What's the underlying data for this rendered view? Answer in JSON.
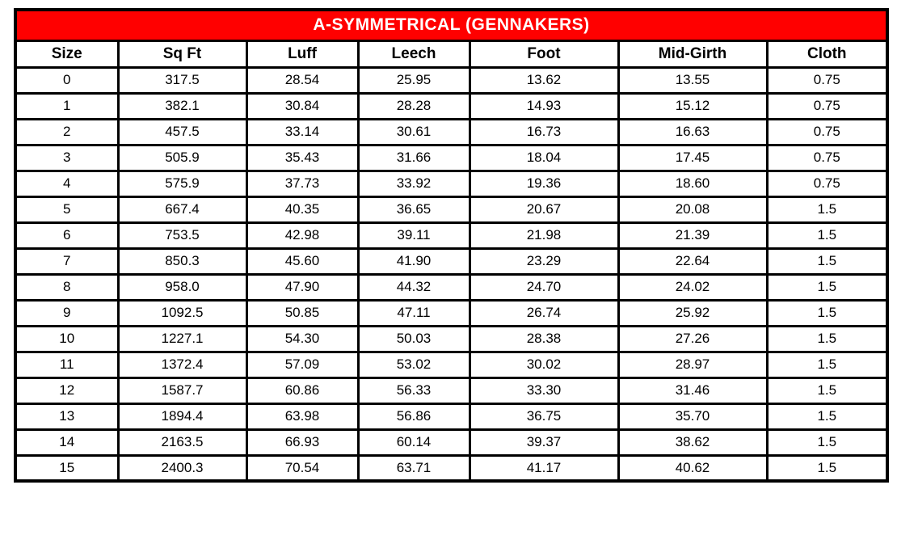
{
  "colors": {
    "title_bg": "#ff0000",
    "title_text": "#ffffff",
    "border": "#000000",
    "cell_bg": "#ffffff",
    "cell_text": "#000000"
  },
  "table": {
    "title": "A-SYMMETRICAL (GENNAKERS)",
    "columns": [
      "Size",
      "Sq Ft",
      "Luff",
      "Leech",
      "Foot",
      "Mid-Girth",
      "Cloth"
    ],
    "column_keys": [
      "size",
      "sq_ft",
      "luff",
      "leech",
      "foot",
      "mid_girth",
      "cloth"
    ],
    "rows": [
      [
        "0",
        "317.5",
        "28.54",
        "25.95",
        "13.62",
        "13.55",
        "0.75"
      ],
      [
        "1",
        "382.1",
        "30.84",
        "28.28",
        "14.93",
        "15.12",
        "0.75"
      ],
      [
        "2",
        "457.5",
        "33.14",
        "30.61",
        "16.73",
        "16.63",
        "0.75"
      ],
      [
        "3",
        "505.9",
        "35.43",
        "31.66",
        "18.04",
        "17.45",
        "0.75"
      ],
      [
        "4",
        "575.9",
        "37.73",
        "33.92",
        "19.36",
        "18.60",
        "0.75"
      ],
      [
        "5",
        "667.4",
        "40.35",
        "36.65",
        "20.67",
        "20.08",
        "1.5"
      ],
      [
        "6",
        "753.5",
        "42.98",
        "39.11",
        "21.98",
        "21.39",
        "1.5"
      ],
      [
        "7",
        "850.3",
        "45.60",
        "41.90",
        "23.29",
        "22.64",
        "1.5"
      ],
      [
        "8",
        "958.0",
        "47.90",
        "44.32",
        "24.70",
        "24.02",
        "1.5"
      ],
      [
        "9",
        "1092.5",
        "50.85",
        "47.11",
        "26.74",
        "25.92",
        "1.5"
      ],
      [
        "10",
        "1227.1",
        "54.30",
        "50.03",
        "28.38",
        "27.26",
        "1.5"
      ],
      [
        "11",
        "1372.4",
        "57.09",
        "53.02",
        "30.02",
        "28.97",
        "1.5"
      ],
      [
        "12",
        "1587.7",
        "60.86",
        "56.33",
        "33.30",
        "31.46",
        "1.5"
      ],
      [
        "13",
        "1894.4",
        "63.98",
        "56.86",
        "36.75",
        "35.70",
        "1.5"
      ],
      [
        "14",
        "2163.5",
        "66.93",
        "60.14",
        "39.37",
        "38.62",
        "1.5"
      ],
      [
        "15",
        "2400.3",
        "70.54",
        "63.71",
        "41.17",
        "40.62",
        "1.5"
      ]
    ]
  },
  "chart_data": {
    "type": "table",
    "title": "A-SYMMETRICAL (GENNAKERS)",
    "columns": [
      "Size",
      "Sq Ft",
      "Luff",
      "Leech",
      "Foot",
      "Mid-Girth",
      "Cloth"
    ],
    "rows": [
      [
        0,
        317.5,
        28.54,
        25.95,
        13.62,
        13.55,
        0.75
      ],
      [
        1,
        382.1,
        30.84,
        28.28,
        14.93,
        15.12,
        0.75
      ],
      [
        2,
        457.5,
        33.14,
        30.61,
        16.73,
        16.63,
        0.75
      ],
      [
        3,
        505.9,
        35.43,
        31.66,
        18.04,
        17.45,
        0.75
      ],
      [
        4,
        575.9,
        37.73,
        33.92,
        19.36,
        18.6,
        0.75
      ],
      [
        5,
        667.4,
        40.35,
        36.65,
        20.67,
        20.08,
        1.5
      ],
      [
        6,
        753.5,
        42.98,
        39.11,
        21.98,
        21.39,
        1.5
      ],
      [
        7,
        850.3,
        45.6,
        41.9,
        23.29,
        22.64,
        1.5
      ],
      [
        8,
        958.0,
        47.9,
        44.32,
        24.7,
        24.02,
        1.5
      ],
      [
        9,
        1092.5,
        50.85,
        47.11,
        26.74,
        25.92,
        1.5
      ],
      [
        10,
        1227.1,
        54.3,
        50.03,
        28.38,
        27.26,
        1.5
      ],
      [
        11,
        1372.4,
        57.09,
        53.02,
        30.02,
        28.97,
        1.5
      ],
      [
        12,
        1587.7,
        60.86,
        56.33,
        33.3,
        31.46,
        1.5
      ],
      [
        13,
        1894.4,
        63.98,
        56.86,
        36.75,
        35.7,
        1.5
      ],
      [
        14,
        2163.5,
        66.93,
        60.14,
        39.37,
        38.62,
        1.5
      ],
      [
        15,
        2400.3,
        70.54,
        63.71,
        41.17,
        40.62,
        1.5
      ]
    ]
  }
}
